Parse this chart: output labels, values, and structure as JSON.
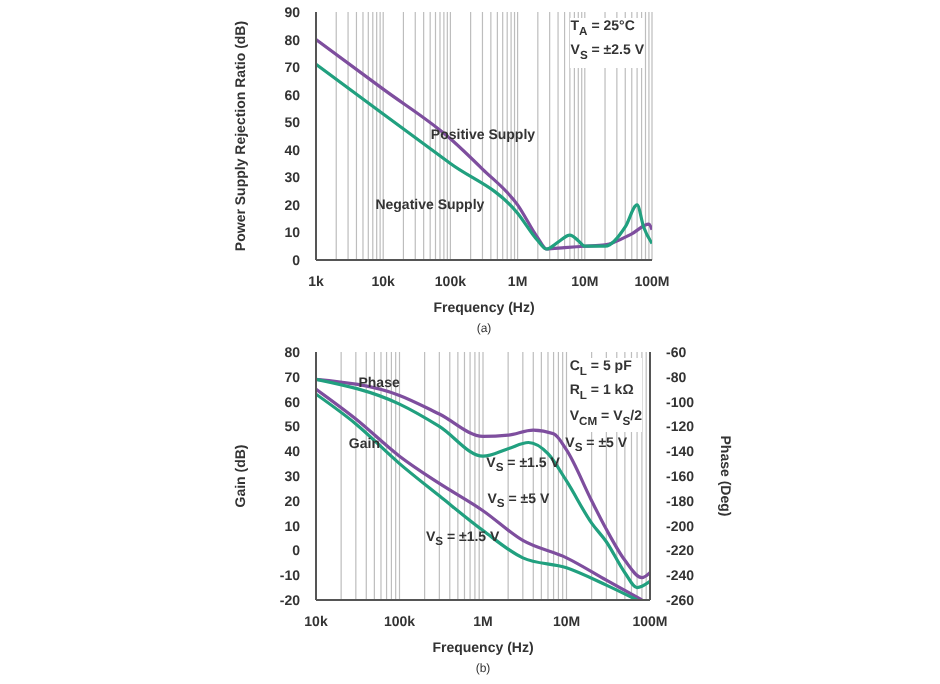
{
  "chart_data": [
    {
      "type": "line",
      "title": "(a)",
      "xlabel": "Frequency (Hz)",
      "ylabel": "Power Supply Rejection Ratio (dB)",
      "log": "x",
      "grid": true,
      "xlim": [
        1000,
        100000000
      ],
      "xticks": [
        {
          "value": 1000,
          "label": "1k"
        },
        {
          "value": 2000,
          "label": null
        },
        {
          "value": 3000,
          "label": null
        },
        {
          "value": 4000,
          "label": null
        },
        {
          "value": 5000,
          "label": null
        },
        {
          "value": 6000,
          "label": null
        },
        {
          "value": 7000,
          "label": null
        },
        {
          "value": 8000,
          "label": null
        },
        {
          "value": 9000,
          "label": null
        },
        {
          "value": 10000,
          "label": "10k"
        },
        {
          "value": 20000,
          "label": null
        },
        {
          "value": 30000,
          "label": null
        },
        {
          "value": 40000,
          "label": null
        },
        {
          "value": 50000,
          "label": null
        },
        {
          "value": 60000,
          "label": null
        },
        {
          "value": 70000,
          "label": null
        },
        {
          "value": 80000,
          "label": null
        },
        {
          "value": 90000,
          "label": null
        },
        {
          "value": 100000,
          "label": "100k"
        },
        {
          "value": 200000,
          "label": null
        },
        {
          "value": 300000,
          "label": null
        },
        {
          "value": 400000,
          "label": null
        },
        {
          "value": 500000,
          "label": null
        },
        {
          "value": 600000,
          "label": null
        },
        {
          "value": 700000,
          "label": null
        },
        {
          "value": 800000,
          "label": null
        },
        {
          "value": 900000,
          "label": null
        },
        {
          "value": 1000000,
          "label": "1M"
        },
        {
          "value": 2000000,
          "label": null
        },
        {
          "value": 3000000,
          "label": null
        },
        {
          "value": 4000000,
          "label": null
        },
        {
          "value": 5000000,
          "label": null
        },
        {
          "value": 6000000,
          "label": null
        },
        {
          "value": 7000000,
          "label": null
        },
        {
          "value": 8000000,
          "label": null
        },
        {
          "value": 9000000,
          "label": null
        },
        {
          "value": 10000000,
          "label": "10M"
        },
        {
          "value": 20000000,
          "label": null
        },
        {
          "value": 30000000,
          "label": null
        },
        {
          "value": 40000000,
          "label": null
        },
        {
          "value": 50000000,
          "label": null
        },
        {
          "value": 60000000,
          "label": null
        },
        {
          "value": 70000000,
          "label": null
        },
        {
          "value": 80000000,
          "label": null
        },
        {
          "value": 90000000,
          "label": null
        },
        {
          "value": 100000000,
          "label": "100M"
        }
      ],
      "ylim": [
        0,
        90
      ],
      "yticks": [
        0,
        10,
        20,
        30,
        40,
        50,
        60,
        70,
        80,
        90
      ],
      "series": [
        {
          "name": "Positive Supply",
          "color": "#7e4e9e",
          "x": [
            1000,
            10000,
            100000,
            300000,
            1000000,
            2000000,
            2700000,
            5000000,
            10000000,
            20000000,
            50000000,
            90000000,
            100000000
          ],
          "values": [
            80,
            62,
            44,
            33,
            20,
            8,
            4,
            4.5,
            5,
            5.5,
            9.5,
            13,
            11
          ]
        },
        {
          "name": "Negative Supply",
          "color": "#21a07f",
          "x": [
            1000,
            10000,
            100000,
            1000000,
            2000000,
            2700000,
            4000000,
            6000000,
            8000000,
            10000000,
            20000000,
            40000000,
            60000000,
            75000000,
            100000000
          ],
          "values": [
            71,
            53,
            35,
            17,
            7,
            4,
            6.5,
            9,
            7,
            5,
            5,
            12,
            20,
            12,
            6
          ]
        }
      ],
      "annotations": [
        "T$_{A}$ = 25°C",
        "V$_{S}$ = ±2.5 V"
      ]
    },
    {
      "type": "line",
      "title": "(b)",
      "xlabel": "Frequency (Hz)",
      "ylabel": "Gain (dB)",
      "y2label": "Phase (Deg)",
      "log": "x",
      "grid": true,
      "xlim": [
        10000,
        100000000
      ],
      "xticks": [
        {
          "value": 10000,
          "label": "10k"
        },
        {
          "value": 20000,
          "label": null
        },
        {
          "value": 30000,
          "label": null
        },
        {
          "value": 40000,
          "label": null
        },
        {
          "value": 50000,
          "label": null
        },
        {
          "value": 60000,
          "label": null
        },
        {
          "value": 70000,
          "label": null
        },
        {
          "value": 80000,
          "label": null
        },
        {
          "value": 90000,
          "label": null
        },
        {
          "value": 100000,
          "label": "100k"
        },
        {
          "value": 200000,
          "label": null
        },
        {
          "value": 300000,
          "label": null
        },
        {
          "value": 400000,
          "label": null
        },
        {
          "value": 500000,
          "label": null
        },
        {
          "value": 600000,
          "label": null
        },
        {
          "value": 700000,
          "label": null
        },
        {
          "value": 800000,
          "label": null
        },
        {
          "value": 900000,
          "label": null
        },
        {
          "value": 1000000,
          "label": "1M"
        },
        {
          "value": 2000000,
          "label": null
        },
        {
          "value": 3000000,
          "label": null
        },
        {
          "value": 4000000,
          "label": null
        },
        {
          "value": 5000000,
          "label": null
        },
        {
          "value": 6000000,
          "label": null
        },
        {
          "value": 7000000,
          "label": null
        },
        {
          "value": 8000000,
          "label": null
        },
        {
          "value": 9000000,
          "label": null
        },
        {
          "value": 10000000,
          "label": "10M"
        },
        {
          "value": 20000000,
          "label": null
        },
        {
          "value": 30000000,
          "label": null
        },
        {
          "value": 40000000,
          "label": null
        },
        {
          "value": 50000000,
          "label": null
        },
        {
          "value": 60000000,
          "label": null
        },
        {
          "value": 70000000,
          "label": null
        },
        {
          "value": 80000000,
          "label": null
        },
        {
          "value": 90000000,
          "label": null
        },
        {
          "value": 100000000,
          "label": "100M"
        }
      ],
      "ylim": [
        -20,
        80
      ],
      "yticks": [
        -20,
        -10,
        0,
        10,
        20,
        30,
        40,
        50,
        60,
        70,
        80
      ],
      "y2lim": [
        -260,
        -60
      ],
      "y2ticks": [
        -260,
        -240,
        -220,
        -200,
        -180,
        -160,
        -140,
        -120,
        -100,
        -80,
        -60
      ],
      "series": [
        {
          "name": "V$_{S}$ = ±5 V",
          "color": "#7e4e9e",
          "x": [
            10000,
            30000,
            100000,
            300000,
            1000000,
            3000000,
            10000000,
            30000000,
            80000000
          ],
          "values": [
            65,
            53,
            38,
            27,
            16,
            4,
            -3,
            -12,
            -20
          ]
        },
        {
          "name": "V$_{S}$ = ±1.5 V",
          "color": "#21a07f",
          "x": [
            10000,
            30000,
            100000,
            300000,
            1000000,
            3000000,
            10000000,
            30000000,
            70000000
          ],
          "values": [
            63,
            51,
            35,
            22,
            8,
            -3,
            -7,
            -14,
            -20
          ]
        },
        {
          "name": "V$_{S}$ = ±5 V",
          "color": "#7e4e9e",
          "axis": "y2",
          "x": [
            10000,
            100000,
            300000,
            1000000,
            2000000,
            4000000,
            7000000,
            10000000,
            20000000,
            30000000,
            50000000,
            80000000,
            100000000
          ],
          "values": [
            -82,
            -95,
            -110,
            -128,
            -127,
            -123,
            -126,
            -139,
            -180,
            -203,
            -228,
            -242,
            -238
          ]
        },
        {
          "name": "V$_{S}$ = ±1.5 V",
          "color": "#21a07f",
          "axis": "y2",
          "x": [
            10000,
            100000,
            300000,
            1000000,
            2000000,
            3500000,
            6000000,
            10000000,
            20000000,
            30000000,
            50000000,
            70000000,
            100000000
          ],
          "values": [
            -82,
            -102,
            -120,
            -144,
            -138,
            -133,
            -142,
            -164,
            -198,
            -213,
            -238,
            -250,
            -245
          ]
        }
      ],
      "annotations": [
        "C$_{L}$ = 5 pF",
        "R$_{L}$ = 1 kΩ",
        "V$_{CM}$ = V$_{S}$/2",
        {
          "text": "Phase",
          "x": 57000,
          "y": 68.4
        },
        {
          "text": "Gain",
          "x": 38000,
          "y": 43.7
        }
      ]
    }
  ]
}
